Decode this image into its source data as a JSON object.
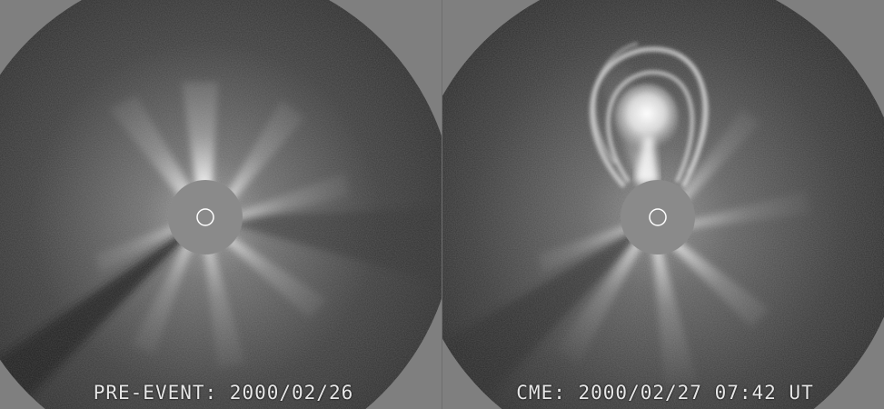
{
  "panels": [
    {
      "caption": "PRE-EVENT: 2000/02/26"
    },
    {
      "caption": "CME: 2000/02/27 07:42 UT"
    }
  ],
  "colors": {
    "frame_gray": "#7f7f7f",
    "occulter_gray": "#8a8a8a",
    "corona_dark": "#2a2a2a",
    "corona_bright": "#ffffff"
  }
}
